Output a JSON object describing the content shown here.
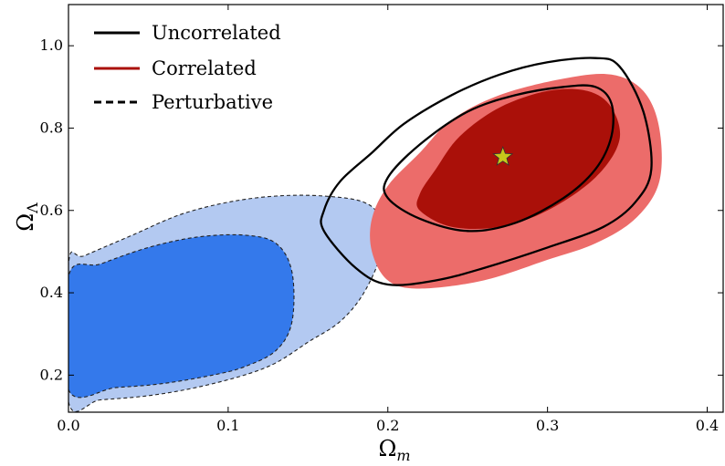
{
  "chart_data": {
    "type": "contour",
    "title": "",
    "xlabel": "Ω",
    "xlabel_sub": "m",
    "ylabel": "Ω",
    "ylabel_sub": "Λ",
    "xlim": [
      0.0,
      0.41
    ],
    "ylim": [
      0.11,
      1.1
    ],
    "xticks": [
      0.0,
      0.1,
      0.2,
      0.3,
      0.4
    ],
    "xtick_labels": [
      "0.0",
      "0.1",
      "0.2",
      "0.3",
      "0.4"
    ],
    "yticks": [
      0.2,
      0.4,
      0.6,
      0.8,
      1.0
    ],
    "ytick_labels": [
      "0.2",
      "0.4",
      "0.6",
      "0.8",
      "1.0"
    ],
    "grid": false,
    "legend_position": "top-left",
    "legend": [
      {
        "label": "Uncorrelated",
        "line": "solid",
        "color": "#000000"
      },
      {
        "label": "Correlated",
        "line": "solid",
        "color": "#aa1009"
      },
      {
        "label": "Perturbative",
        "line": "dashed",
        "color": "#000000"
      }
    ],
    "series": [
      {
        "name": "Perturbative",
        "style": "dashed",
        "levels": [
          {
            "level": "outer",
            "fill": "#b3c9f1",
            "points": [
              [
                0.0,
                0.135
              ],
              [
                0.02,
                0.14
              ],
              [
                0.05,
                0.15
              ],
              [
                0.08,
                0.17
              ],
              [
                0.11,
                0.2
              ],
              [
                0.13,
                0.23
              ],
              [
                0.15,
                0.28
              ],
              [
                0.17,
                0.33
              ],
              [
                0.185,
                0.4
              ],
              [
                0.196,
                0.5
              ],
              [
                0.195,
                0.58
              ],
              [
                0.185,
                0.62
              ],
              [
                0.16,
                0.635
              ],
              [
                0.13,
                0.635
              ],
              [
                0.1,
                0.62
              ],
              [
                0.07,
                0.59
              ],
              [
                0.04,
                0.54
              ],
              [
                0.01,
                0.49
              ],
              [
                0.0,
                0.47
              ]
            ]
          },
          {
            "level": "inner",
            "fill": "#3479eb",
            "points": [
              [
                0.0,
                0.165
              ],
              [
                0.03,
                0.17
              ],
              [
                0.06,
                0.18
              ],
              [
                0.09,
                0.2
              ],
              [
                0.11,
                0.22
              ],
              [
                0.13,
                0.26
              ],
              [
                0.14,
                0.33
              ],
              [
                0.14,
                0.45
              ],
              [
                0.13,
                0.52
              ],
              [
                0.11,
                0.54
              ],
              [
                0.08,
                0.535
              ],
              [
                0.05,
                0.51
              ],
              [
                0.02,
                0.47
              ],
              [
                0.0,
                0.44
              ]
            ]
          }
        ]
      },
      {
        "name": "Correlated",
        "style": "filled",
        "levels": [
          {
            "level": "outer",
            "fill": "#ec6c6a",
            "points": [
              [
                0.19,
                0.5
              ],
              [
                0.2,
                0.43
              ],
              [
                0.22,
                0.41
              ],
              [
                0.26,
                0.43
              ],
              [
                0.3,
                0.48
              ],
              [
                0.33,
                0.52
              ],
              [
                0.355,
                0.58
              ],
              [
                0.37,
                0.67
              ],
              [
                0.37,
                0.8
              ],
              [
                0.36,
                0.89
              ],
              [
                0.34,
                0.93
              ],
              [
                0.31,
                0.92
              ],
              [
                0.27,
                0.88
              ],
              [
                0.24,
                0.82
              ],
              [
                0.22,
                0.74
              ],
              [
                0.2,
                0.66
              ],
              [
                0.19,
                0.58
              ]
            ]
          },
          {
            "level": "inner",
            "fill": "#aa1009",
            "points": [
              [
                0.22,
                0.6
              ],
              [
                0.24,
                0.56
              ],
              [
                0.27,
                0.56
              ],
              [
                0.3,
                0.6
              ],
              [
                0.33,
                0.68
              ],
              [
                0.345,
                0.77
              ],
              [
                0.34,
                0.85
              ],
              [
                0.325,
                0.89
              ],
              [
                0.3,
                0.89
              ],
              [
                0.27,
                0.85
              ],
              [
                0.245,
                0.78
              ],
              [
                0.23,
                0.7
              ],
              [
                0.22,
                0.64
              ]
            ]
          }
        ]
      },
      {
        "name": "Uncorrelated",
        "style": "solid",
        "levels": [
          {
            "level": "outer",
            "points": [
              [
                0.16,
                0.55
              ],
              [
                0.18,
                0.46
              ],
              [
                0.2,
                0.42
              ],
              [
                0.23,
                0.43
              ],
              [
                0.26,
                0.46
              ],
              [
                0.3,
                0.51
              ],
              [
                0.335,
                0.56
              ],
              [
                0.355,
                0.62
              ],
              [
                0.365,
                0.7
              ],
              [
                0.36,
                0.84
              ],
              [
                0.345,
                0.95
              ],
              [
                0.33,
                0.97
              ],
              [
                0.3,
                0.96
              ],
              [
                0.27,
                0.93
              ],
              [
                0.24,
                0.88
              ],
              [
                0.21,
                0.81
              ],
              [
                0.19,
                0.74
              ],
              [
                0.17,
                0.67
              ],
              [
                0.16,
                0.6
              ]
            ]
          },
          {
            "level": "inner",
            "points": [
              [
                0.2,
                0.63
              ],
              [
                0.22,
                0.58
              ],
              [
                0.25,
                0.55
              ],
              [
                0.28,
                0.57
              ],
              [
                0.31,
                0.63
              ],
              [
                0.33,
                0.7
              ],
              [
                0.34,
                0.78
              ],
              [
                0.34,
                0.86
              ],
              [
                0.33,
                0.9
              ],
              [
                0.31,
                0.9
              ],
              [
                0.28,
                0.88
              ],
              [
                0.25,
                0.84
              ],
              [
                0.22,
                0.76
              ],
              [
                0.2,
                0.68
              ]
            ]
          }
        ]
      }
    ],
    "markers": [
      {
        "shape": "star",
        "x": 0.272,
        "y": 0.73,
        "color": "#c7c71b"
      }
    ]
  }
}
